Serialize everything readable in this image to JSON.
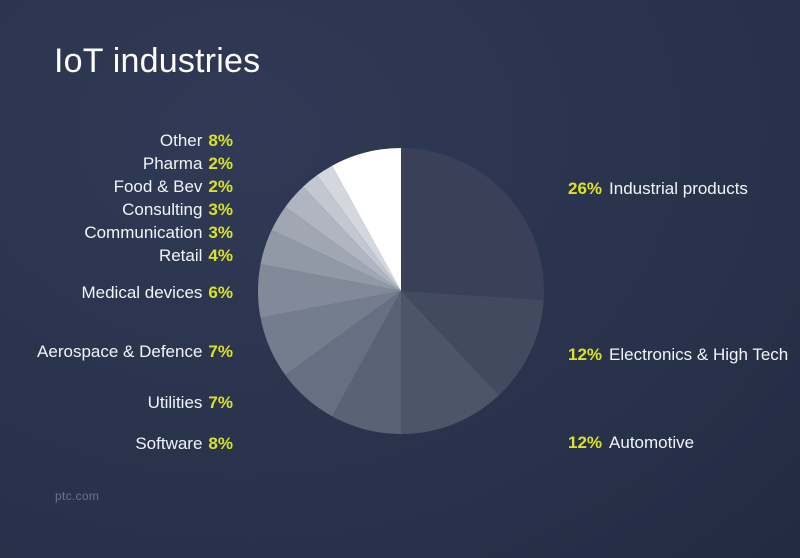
{
  "page": {
    "title": "IoT industries",
    "footer": "ptc.com",
    "accent_color": "#dbe226",
    "title_color": "#fdfdfe",
    "label_color": "#f2f4f7",
    "footer_color": "#6a7490",
    "background_top": "#303a56",
    "background_bottom": "#1c2339"
  },
  "chart_data": {
    "type": "pie",
    "title": "IoT industries",
    "start_angle_deg": 0,
    "direction": "clockwise",
    "value_suffix": "%",
    "legend_position": "flanking-labels",
    "slices": [
      {
        "label": "Industrial products",
        "value": 26,
        "color": "#394057",
        "side": "right"
      },
      {
        "label": "Electronics & High Tech",
        "value": 12,
        "color": "#414a5e",
        "side": "right"
      },
      {
        "label": "Automotive",
        "value": 12,
        "color": "#4d5669",
        "side": "right"
      },
      {
        "label": "Software",
        "value": 8,
        "color": "#5a6376",
        "side": "left"
      },
      {
        "label": "Utilities",
        "value": 7,
        "color": "#677083",
        "side": "left"
      },
      {
        "label": "Aerospace & Defence",
        "value": 7,
        "color": "#747d8e",
        "side": "left"
      },
      {
        "label": "Medical devices",
        "value": 6,
        "color": "#828a99",
        "side": "left"
      },
      {
        "label": "Retail",
        "value": 4,
        "color": "#9199a6",
        "side": "left"
      },
      {
        "label": "Communication",
        "value": 3,
        "color": "#a0a7b3",
        "side": "left"
      },
      {
        "label": "Consulting",
        "value": 3,
        "color": "#b0b6c1",
        "side": "left"
      },
      {
        "label": "Food & Bev",
        "value": 2,
        "color": "#c2c7d0",
        "side": "left"
      },
      {
        "label": "Pharma",
        "value": 2,
        "color": "#d4d7de",
        "side": "left"
      },
      {
        "label": "Other",
        "value": 8,
        "color": "#ffffff",
        "side": "left"
      }
    ]
  }
}
